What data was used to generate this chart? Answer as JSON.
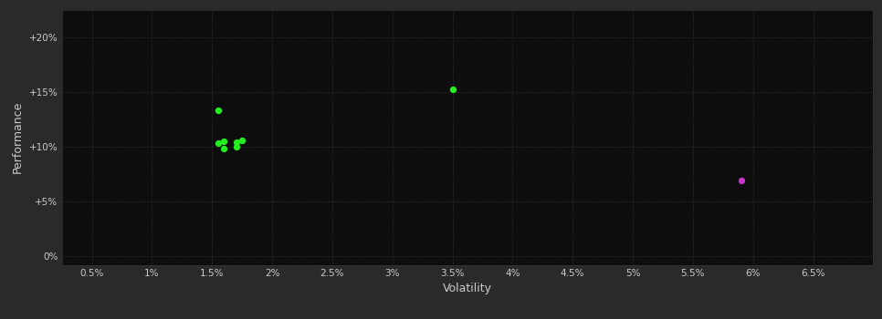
{
  "background_color": "#2a2a2a",
  "plot_bg_color": "#0d0d0d",
  "grid_color": "#3a3a3a",
  "text_color": "#cccccc",
  "xlabel": "Volatility",
  "ylabel": "Performance",
  "xlim": [
    0.0025,
    0.07
  ],
  "ylim": [
    -0.008,
    0.225
  ],
  "xticks": [
    0.005,
    0.01,
    0.015,
    0.02,
    0.025,
    0.03,
    0.035,
    0.04,
    0.045,
    0.05,
    0.055,
    0.06,
    0.065
  ],
  "yticks": [
    0.0,
    0.05,
    0.1,
    0.15,
    0.2
  ],
  "xtick_labels": [
    "0.5%",
    "1%",
    "1.5%",
    "2%",
    "2.5%",
    "3%",
    "3.5%",
    "4%",
    "4.5%",
    "5%",
    "5.5%",
    "6%",
    "6.5%"
  ],
  "ytick_labels": [
    "0%",
    "+5%",
    "+10%",
    "+15%",
    "+20%"
  ],
  "green_points": [
    [
      0.0155,
      0.133
    ],
    [
      0.0155,
      0.103
    ],
    [
      0.016,
      0.105
    ],
    [
      0.017,
      0.104
    ],
    [
      0.0175,
      0.106
    ],
    [
      0.017,
      0.1
    ],
    [
      0.016,
      0.098
    ],
    [
      0.035,
      0.152
    ]
  ],
  "magenta_points": [
    [
      0.059,
      0.069
    ]
  ],
  "green_color": "#22ee22",
  "magenta_color": "#cc33cc",
  "point_size": 18
}
